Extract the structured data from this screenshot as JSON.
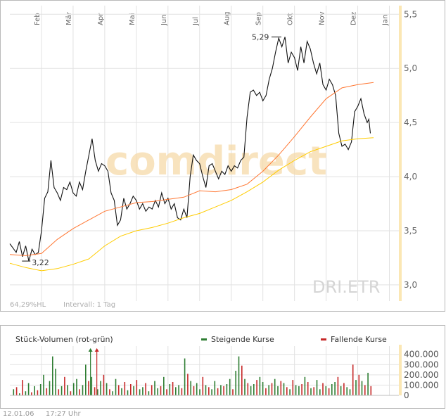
{
  "chart_data": [
    {
      "type": "line",
      "watermark": "comdirect",
      "symbol": "DRI.ETR",
      "footer_left": "64,29%HL",
      "footer_interval": "Intervall: 1 Tag",
      "x_months": [
        "Feb",
        "Mär",
        "Apr",
        "Mai",
        "Jun",
        "Jul",
        "Aug",
        "Sep",
        "Okt",
        "Nov",
        "Dez",
        "Jan"
      ],
      "y_ticks": [
        "5,5",
        "5,0",
        "4,5",
        "4,0",
        "3,5",
        "3,0"
      ],
      "y_tick_values": [
        5.5,
        5.0,
        4.5,
        4.0,
        3.5,
        3.0
      ],
      "ylim": [
        2.85,
        5.58
      ],
      "x_unit": "months since mid-January 2005",
      "xlim": [
        0,
        12.3
      ],
      "annotations": [
        {
          "text": "3,22",
          "x": 0.65,
          "y": 3.22
        },
        {
          "text": "5,29",
          "x": 8.45,
          "y": 5.29
        }
      ],
      "series": [
        {
          "name": "",
          "color": "#111111",
          "points": [
            [
              0.0,
              3.38
            ],
            [
              0.1,
              3.34
            ],
            [
              0.2,
              3.3
            ],
            [
              0.3,
              3.4
            ],
            [
              0.4,
              3.26
            ],
            [
              0.5,
              3.36
            ],
            [
              0.6,
              3.22
            ],
            [
              0.7,
              3.33
            ],
            [
              0.8,
              3.28
            ],
            [
              0.9,
              3.3
            ],
            [
              1.0,
              3.5
            ],
            [
              1.1,
              3.8
            ],
            [
              1.2,
              3.86
            ],
            [
              1.3,
              4.15
            ],
            [
              1.4,
              3.9
            ],
            [
              1.5,
              3.85
            ],
            [
              1.6,
              3.78
            ],
            [
              1.7,
              3.9
            ],
            [
              1.8,
              3.88
            ],
            [
              1.9,
              3.95
            ],
            [
              2.0,
              3.85
            ],
            [
              2.1,
              3.82
            ],
            [
              2.2,
              3.95
            ],
            [
              2.3,
              3.88
            ],
            [
              2.4,
              4.05
            ],
            [
              2.5,
              4.2
            ],
            [
              2.6,
              4.35
            ],
            [
              2.7,
              4.15
            ],
            [
              2.8,
              4.05
            ],
            [
              2.9,
              4.12
            ],
            [
              3.0,
              4.1
            ],
            [
              3.1,
              4.05
            ],
            [
              3.2,
              3.85
            ],
            [
              3.3,
              3.78
            ],
            [
              3.4,
              3.55
            ],
            [
              3.5,
              3.6
            ],
            [
              3.6,
              3.8
            ],
            [
              3.7,
              3.7
            ],
            [
              3.8,
              3.75
            ],
            [
              3.9,
              3.82
            ],
            [
              4.0,
              3.78
            ],
            [
              4.1,
              3.7
            ],
            [
              4.2,
              3.75
            ],
            [
              4.3,
              3.68
            ],
            [
              4.4,
              3.72
            ],
            [
              4.5,
              3.7
            ],
            [
              4.6,
              3.78
            ],
            [
              4.7,
              3.72
            ],
            [
              4.8,
              3.85
            ],
            [
              4.9,
              3.75
            ],
            [
              5.0,
              3.8
            ],
            [
              5.1,
              3.7
            ],
            [
              5.2,
              3.75
            ],
            [
              5.3,
              3.62
            ],
            [
              5.4,
              3.6
            ],
            [
              5.5,
              3.7
            ],
            [
              5.6,
              3.62
            ],
            [
              5.7,
              4.0
            ],
            [
              5.8,
              4.2
            ],
            [
              5.9,
              4.15
            ],
            [
              6.0,
              4.12
            ],
            [
              6.1,
              4.0
            ],
            [
              6.2,
              3.9
            ],
            [
              6.3,
              4.1
            ],
            [
              6.4,
              4.12
            ],
            [
              6.5,
              4.05
            ],
            [
              6.6,
              3.98
            ],
            [
              6.7,
              4.05
            ],
            [
              6.8,
              4.02
            ],
            [
              6.9,
              4.1
            ],
            [
              7.0,
              4.05
            ],
            [
              7.1,
              4.1
            ],
            [
              7.2,
              4.08
            ],
            [
              7.3,
              4.15
            ],
            [
              7.4,
              4.18
            ],
            [
              7.5,
              4.55
            ],
            [
              7.6,
              4.78
            ],
            [
              7.7,
              4.8
            ],
            [
              7.8,
              4.75
            ],
            [
              7.9,
              4.78
            ],
            [
              8.0,
              4.7
            ],
            [
              8.1,
              4.75
            ],
            [
              8.2,
              4.9
            ],
            [
              8.3,
              5.0
            ],
            [
              8.4,
              5.15
            ],
            [
              8.5,
              5.28
            ],
            [
              8.6,
              5.2
            ],
            [
              8.7,
              5.29
            ],
            [
              8.8,
              5.05
            ],
            [
              8.9,
              5.15
            ],
            [
              9.0,
              5.1
            ],
            [
              9.1,
              4.98
            ],
            [
              9.2,
              5.2
            ],
            [
              9.3,
              5.05
            ],
            [
              9.4,
              5.25
            ],
            [
              9.5,
              5.18
            ],
            [
              9.6,
              5.05
            ],
            [
              9.7,
              4.95
            ],
            [
              9.8,
              5.05
            ],
            [
              9.9,
              4.85
            ],
            [
              10.0,
              4.8
            ],
            [
              10.1,
              4.9
            ],
            [
              10.2,
              4.85
            ],
            [
              10.3,
              4.75
            ],
            [
              10.4,
              4.4
            ],
            [
              10.5,
              4.28
            ],
            [
              10.6,
              4.3
            ],
            [
              10.7,
              4.25
            ],
            [
              10.8,
              4.32
            ],
            [
              10.9,
              4.6
            ],
            [
              11.0,
              4.65
            ],
            [
              11.1,
              4.72
            ],
            [
              11.2,
              4.58
            ],
            [
              11.3,
              4.5
            ],
            [
              11.35,
              4.53
            ],
            [
              11.4,
              4.4
            ]
          ]
        },
        {
          "name": "",
          "color": "#ff7733",
          "points": [
            [
              0.0,
              3.28
            ],
            [
              0.5,
              3.27
            ],
            [
              1.0,
              3.29
            ],
            [
              1.5,
              3.42
            ],
            [
              2.0,
              3.52
            ],
            [
              2.5,
              3.6
            ],
            [
              3.0,
              3.68
            ],
            [
              3.5,
              3.72
            ],
            [
              4.0,
              3.76
            ],
            [
              4.5,
              3.77
            ],
            [
              5.0,
              3.79
            ],
            [
              5.5,
              3.81
            ],
            [
              6.0,
              3.87
            ],
            [
              6.5,
              3.86
            ],
            [
              7.0,
              3.88
            ],
            [
              7.5,
              3.93
            ],
            [
              8.0,
              4.05
            ],
            [
              8.5,
              4.2
            ],
            [
              9.0,
              4.37
            ],
            [
              9.5,
              4.55
            ],
            [
              10.0,
              4.72
            ],
            [
              10.5,
              4.82
            ],
            [
              11.0,
              4.85
            ],
            [
              11.5,
              4.87
            ]
          ]
        },
        {
          "name": "",
          "color": "#ffcc00",
          "points": [
            [
              0.0,
              3.2
            ],
            [
              0.5,
              3.16
            ],
            [
              1.0,
              3.13
            ],
            [
              1.5,
              3.15
            ],
            [
              2.0,
              3.19
            ],
            [
              2.5,
              3.24
            ],
            [
              3.0,
              3.36
            ],
            [
              3.5,
              3.45
            ],
            [
              4.0,
              3.5
            ],
            [
              4.5,
              3.53
            ],
            [
              5.0,
              3.57
            ],
            [
              5.5,
              3.62
            ],
            [
              6.0,
              3.66
            ],
            [
              6.5,
              3.72
            ],
            [
              7.0,
              3.78
            ],
            [
              7.5,
              3.86
            ],
            [
              8.0,
              3.95
            ],
            [
              8.5,
              4.06
            ],
            [
              9.0,
              4.15
            ],
            [
              9.5,
              4.23
            ],
            [
              10.0,
              4.28
            ],
            [
              10.5,
              4.33
            ],
            [
              11.0,
              4.35
            ],
            [
              11.5,
              4.36
            ]
          ]
        }
      ]
    },
    {
      "type": "bar",
      "title": "Stück-Volumen (rot-grün)",
      "legend": [
        {
          "label": "Steigende Kurse",
          "color": "#2e7d32"
        },
        {
          "label": "Fallende Kurse",
          "color": "#c62828"
        }
      ],
      "y_ticks": [
        "400.000",
        "300.000",
        "200.000",
        "100.000",
        "0"
      ],
      "y_tick_values": [
        400000,
        300000,
        200000,
        100000,
        0
      ],
      "ylim": [
        0,
        480000
      ],
      "xlim": [
        0,
        12.3
      ],
      "tall_markers": [
        {
          "x": 2.55,
          "value": 460000,
          "color": "#2e7d32"
        },
        {
          "x": 2.75,
          "value": 460000,
          "color": "#c62828"
        }
      ],
      "values": [
        60000,
        80000,
        20000,
        150000,
        40000,
        120000,
        30000,
        90000,
        50000,
        110000,
        200000,
        70000,
        140000,
        380000,
        260000,
        60000,
        90000,
        180000,
        100000,
        40000,
        120000,
        160000,
        60000,
        100000,
        300000,
        140000,
        180000,
        80000,
        60000,
        140000,
        200000,
        120000,
        60000,
        40000,
        160000,
        100000,
        70000,
        130000,
        50000,
        110000,
        90000,
        150000,
        60000,
        80000,
        120000,
        40000,
        100000,
        140000,
        70000,
        90000,
        180000,
        60000,
        110000,
        130000,
        80000,
        100000,
        70000,
        360000,
        210000,
        140000,
        90000,
        120000,
        60000,
        180000,
        100000,
        80000,
        60000,
        140000,
        70000,
        100000,
        90000,
        110000,
        160000,
        60000,
        240000,
        380000,
        290000,
        160000,
        120000,
        90000,
        110000,
        150000,
        180000,
        130000,
        70000,
        100000,
        120000,
        160000,
        90000,
        140000,
        120000,
        80000,
        60000,
        150000,
        100000,
        90000,
        110000,
        180000,
        130000,
        70000,
        80000,
        150000,
        60000,
        120000,
        90000,
        70000,
        110000,
        130000,
        180000,
        90000,
        120000,
        80000,
        60000,
        300000,
        150000,
        200000,
        140000,
        100000,
        220000,
        90000
      ],
      "rising": [
        true,
        false,
        true,
        false,
        true,
        true,
        false,
        true,
        false,
        true,
        true,
        false,
        true,
        true,
        true,
        false,
        true,
        false,
        true,
        false,
        true,
        true,
        false,
        true,
        true,
        false,
        true,
        false,
        true,
        true,
        false,
        true,
        false,
        true,
        true,
        false,
        true,
        false,
        true,
        false,
        true,
        false,
        true,
        true,
        false,
        true,
        false,
        true,
        true,
        false,
        true,
        false,
        true,
        false,
        true,
        true,
        false,
        true,
        false,
        true,
        false,
        true,
        true,
        false,
        true,
        false,
        true,
        true,
        false,
        true,
        false,
        true,
        true,
        false,
        true,
        true,
        false,
        true,
        false,
        true,
        true,
        false,
        true,
        true,
        false,
        true,
        false,
        true,
        true,
        false,
        true,
        false,
        true,
        false,
        true,
        true,
        false,
        true,
        false,
        true,
        false,
        true,
        true,
        false,
        true,
        false,
        true,
        true,
        false,
        true,
        false,
        true,
        true,
        false,
        true,
        false,
        true,
        false,
        true,
        false
      ]
    }
  ],
  "footer": {
    "date": "12.01.06",
    "time": "17:27 Uhr"
  }
}
